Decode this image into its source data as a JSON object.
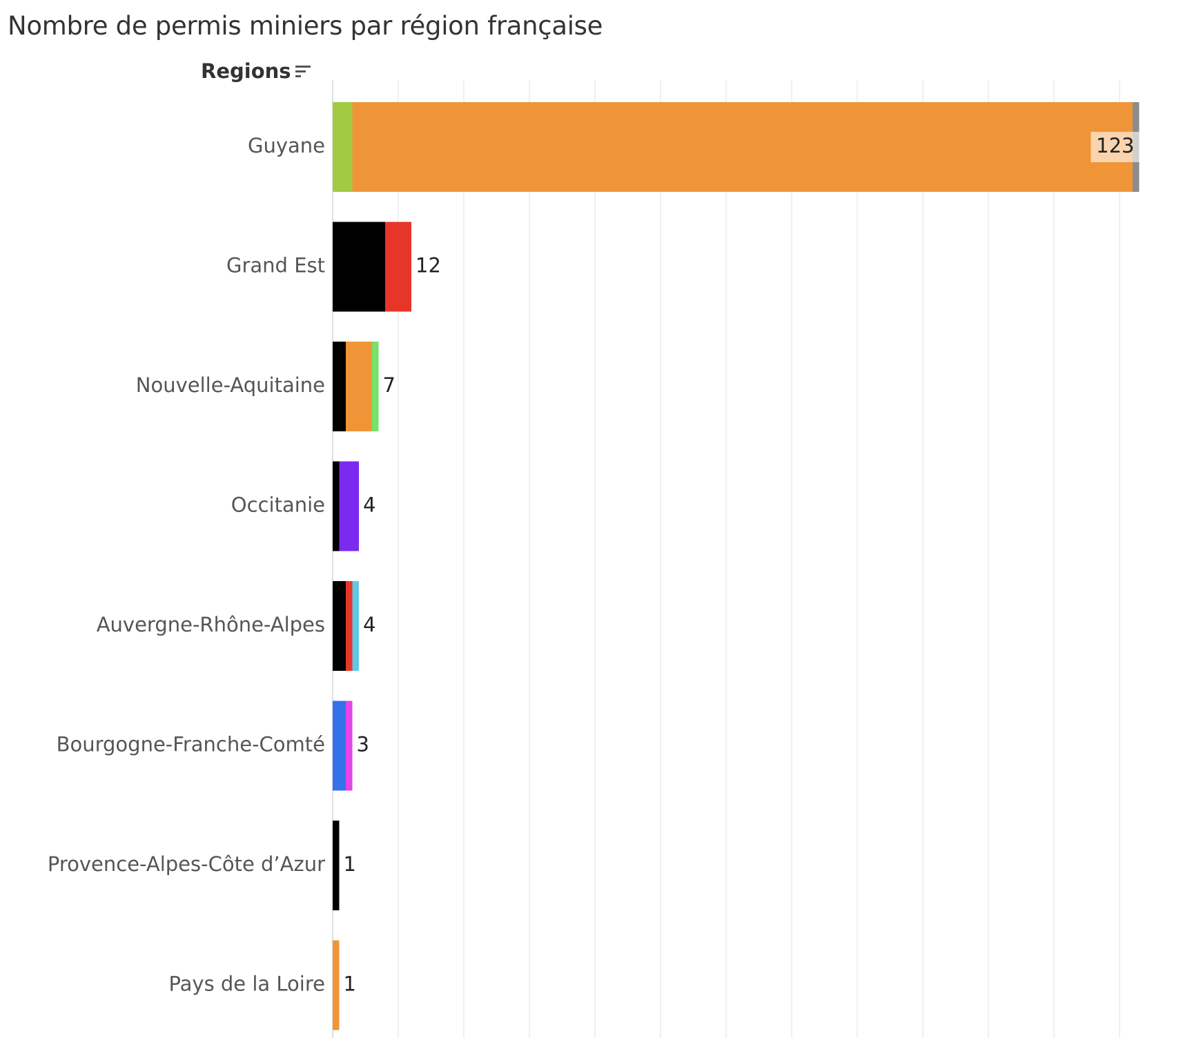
{
  "chart_data": {
    "type": "bar",
    "orientation": "horizontal",
    "stacked": true,
    "title": "Nombre de permis miniers par région française",
    "ylabel": "Regions",
    "xlim": [
      0,
      124
    ],
    "grid": true,
    "categories": [
      "Guyane",
      "Grand Est",
      "Nouvelle-Aquitaine",
      "Occitanie",
      "Auvergne-Rhône-Alpes",
      "Bourgogne-Franche-Comté",
      "Provence-Alpes-Côte d’Azur",
      "Pays de la Loire"
    ],
    "totals": [
      123,
      12,
      7,
      4,
      4,
      3,
      1,
      1
    ],
    "total_labels": [
      "123",
      "12",
      "7",
      "4",
      "4",
      "3",
      "1",
      "1"
    ],
    "segments": [
      [
        {
          "value": 3,
          "color": "#a2cb42"
        },
        {
          "value": 119,
          "color": "#f09537"
        },
        {
          "value": 1,
          "color": "#8c8c8c"
        }
      ],
      [
        {
          "value": 8,
          "color": "#000000"
        },
        {
          "value": 4,
          "color": "#e8352a"
        }
      ],
      [
        {
          "value": 2,
          "color": "#000000"
        },
        {
          "value": 4,
          "color": "#f09537"
        },
        {
          "value": 1,
          "color": "#77e26a"
        }
      ],
      [
        {
          "value": 1,
          "color": "#000000"
        },
        {
          "value": 3,
          "color": "#7b2af0"
        }
      ],
      [
        {
          "value": 2,
          "color": "#000000"
        },
        {
          "value": 1,
          "color": "#e8352a"
        },
        {
          "value": 1,
          "color": "#63c7e6"
        }
      ],
      [
        {
          "value": 2,
          "color": "#3671ec"
        },
        {
          "value": 1,
          "color": "#e544e6"
        }
      ],
      [
        {
          "value": 1,
          "color": "#000000"
        }
      ],
      [
        {
          "value": 1,
          "color": "#f09537"
        }
      ]
    ]
  }
}
